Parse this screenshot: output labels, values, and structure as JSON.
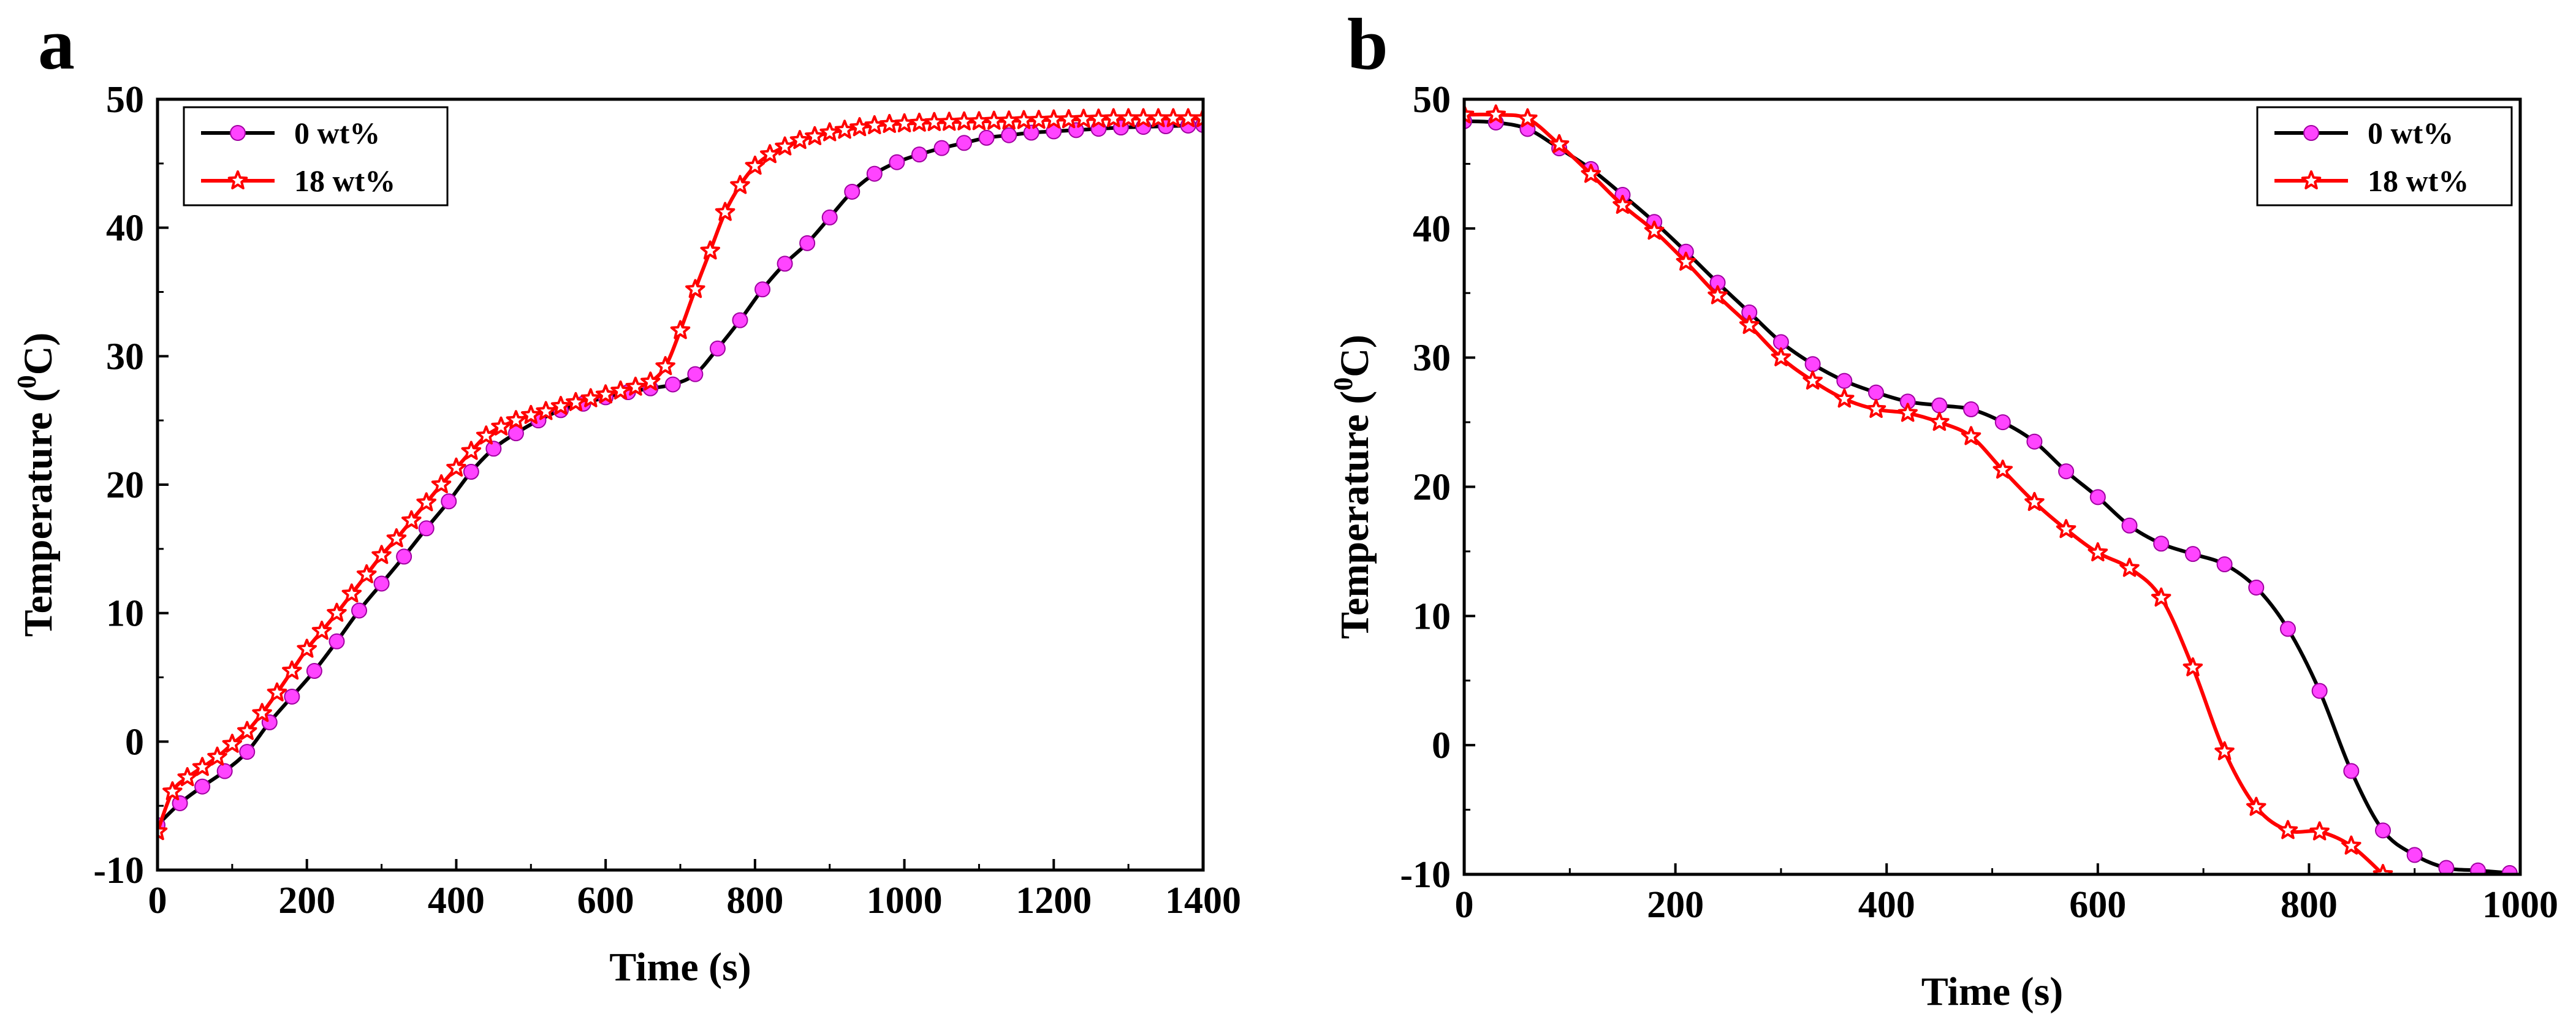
{
  "chart_data": [
    {
      "panel": "a",
      "type": "line",
      "title": "",
      "xlabel": "Time (s)",
      "ylabel_main": "Temperature (",
      "ylabel_sup": "0",
      "ylabel_end": "C)",
      "xlim": [
        0,
        1400
      ],
      "ylim": [
        -10,
        50
      ],
      "xticks": [
        "0",
        "200",
        "400",
        "600",
        "800",
        "1000",
        "1200",
        "1400"
      ],
      "yticks": [
        "-10",
        "0",
        "10",
        "20",
        "30",
        "40",
        "50"
      ],
      "legend_position": "top-left",
      "series": [
        {
          "name": "0 wt%",
          "color": "#000000",
          "marker": "circle",
          "marker_color": "#ff44ff",
          "x": [
            0,
            30,
            60,
            90,
            120,
            150,
            180,
            210,
            240,
            270,
            300,
            330,
            360,
            390,
            420,
            450,
            480,
            510,
            540,
            570,
            600,
            630,
            660,
            690,
            720,
            750,
            780,
            810,
            840,
            870,
            900,
            930,
            960,
            990,
            1020,
            1050,
            1080,
            1110,
            1140,
            1170,
            1200,
            1230,
            1260,
            1290,
            1320,
            1350,
            1380,
            1400
          ],
          "y": [
            -6.5,
            -4.8,
            -3.5,
            -2.3,
            -0.8,
            1.5,
            3.5,
            5.5,
            7.8,
            10.2,
            12.3,
            14.4,
            16.6,
            18.7,
            21,
            22.8,
            24,
            25,
            25.8,
            26.3,
            26.8,
            27.2,
            27.5,
            27.8,
            28.6,
            30.6,
            32.8,
            35.2,
            37.2,
            38.8,
            40.8,
            42.8,
            44.2,
            45.1,
            45.7,
            46.2,
            46.6,
            47,
            47.2,
            47.4,
            47.5,
            47.6,
            47.7,
            47.8,
            47.85,
            47.9,
            47.95,
            48
          ]
        },
        {
          "name": "18 wt%",
          "color": "#ff0000",
          "marker": "star",
          "marker_color": "#ff0000",
          "x": [
            0,
            20,
            40,
            60,
            80,
            100,
            120,
            140,
            160,
            180,
            200,
            220,
            240,
            260,
            280,
            300,
            320,
            340,
            360,
            380,
            400,
            420,
            440,
            460,
            480,
            500,
            520,
            540,
            560,
            580,
            600,
            620,
            640,
            660,
            680,
            700,
            720,
            740,
            760,
            780,
            800,
            820,
            840,
            860,
            880,
            900,
            920,
            940,
            960,
            980,
            1000,
            1020,
            1040,
            1060,
            1080,
            1100,
            1120,
            1140,
            1160,
            1180,
            1200,
            1220,
            1240,
            1260,
            1280,
            1300,
            1320,
            1340,
            1360,
            1380,
            1400
          ],
          "y": [
            -7,
            -3.9,
            -2.8,
            -2,
            -1.2,
            -0.2,
            0.8,
            2.2,
            3.8,
            5.5,
            7.2,
            8.6,
            10,
            11.5,
            13,
            14.5,
            15.8,
            17.2,
            18.6,
            20,
            21.3,
            22.6,
            23.8,
            24.5,
            25,
            25.4,
            25.7,
            26.1,
            26.4,
            26.7,
            27,
            27.3,
            27.6,
            28,
            29.2,
            32,
            35.2,
            38.2,
            41.2,
            43.3,
            44.8,
            45.7,
            46.3,
            46.8,
            47.1,
            47.4,
            47.6,
            47.8,
            47.95,
            48.05,
            48.1,
            48.15,
            48.2,
            48.22,
            48.25,
            48.27,
            48.3,
            48.32,
            48.35,
            48.37,
            48.4,
            48.42,
            48.45,
            48.47,
            48.5,
            48.5,
            48.5,
            48.5,
            48.5,
            48.5,
            48.5
          ]
        }
      ]
    },
    {
      "panel": "b",
      "type": "line",
      "title": "",
      "xlabel": "Time (s)",
      "ylabel_main": "Temperature (",
      "ylabel_sup": "0",
      "ylabel_end": "C)",
      "xlim": [
        0,
        1000
      ],
      "ylim": [
        -10,
        50
      ],
      "xticks": [
        "0",
        "200",
        "400",
        "600",
        "800",
        "1000"
      ],
      "yticks": [
        "-10",
        "0",
        "10",
        "20",
        "30",
        "40",
        "50"
      ],
      "legend_position": "top-right",
      "series": [
        {
          "name": "0 wt%",
          "color": "#000000",
          "marker": "circle",
          "marker_color": "#ff44ff",
          "x": [
            0,
            30,
            60,
            90,
            120,
            150,
            180,
            210,
            240,
            270,
            300,
            330,
            360,
            390,
            420,
            450,
            480,
            510,
            540,
            570,
            600,
            630,
            660,
            690,
            720,
            750,
            780,
            810,
            840,
            870,
            900,
            930,
            960,
            990
          ],
          "y": [
            48.3,
            48.2,
            47.7,
            46.2,
            44.6,
            42.6,
            40.5,
            38.2,
            35.8,
            33.5,
            31.2,
            29.5,
            28.2,
            27.3,
            26.6,
            26.3,
            26,
            25,
            23.5,
            21.2,
            19.2,
            17,
            15.6,
            14.8,
            14,
            12.2,
            9,
            4.2,
            -2,
            -6.6,
            -8.5,
            -9.5,
            -9.7,
            -9.9
          ]
        },
        {
          "name": "18 wt%",
          "color": "#ff0000",
          "marker": "star",
          "marker_color": "#ff0000",
          "x": [
            0,
            30,
            60,
            90,
            120,
            150,
            180,
            210,
            240,
            270,
            300,
            330,
            360,
            390,
            420,
            450,
            480,
            510,
            540,
            570,
            600,
            630,
            660,
            690,
            720,
            750,
            780,
            810,
            840,
            870
          ],
          "y": [
            48.8,
            48.8,
            48.5,
            46.5,
            44.2,
            41.8,
            39.8,
            37.4,
            34.8,
            32.5,
            30,
            28.2,
            26.8,
            26,
            25.7,
            25,
            23.9,
            21.3,
            18.8,
            16.7,
            14.9,
            13.7,
            11.4,
            6,
            -0.5,
            -4.8,
            -6.6,
            -6.7,
            -7.8,
            -10
          ]
        }
      ]
    }
  ]
}
